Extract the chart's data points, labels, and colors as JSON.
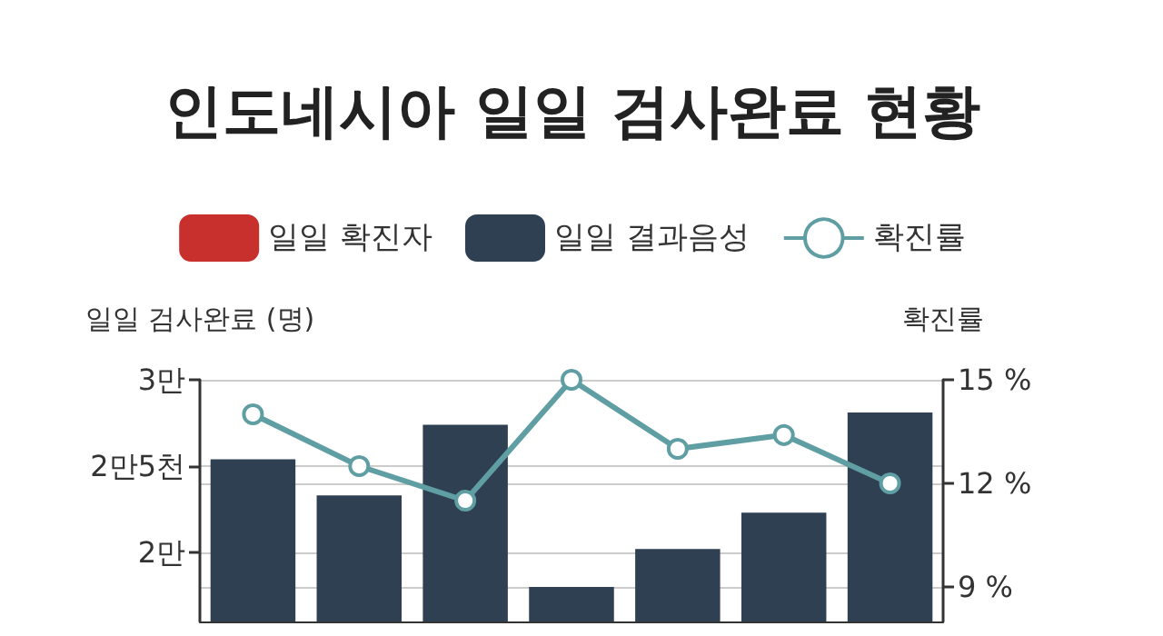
{
  "chart_data": {
    "type": "bar",
    "title": "인도네시아 일일 검사완료 현황",
    "categories": [
      null,
      null,
      null,
      null,
      null,
      null,
      null
    ],
    "series": [
      {
        "name": "일일 확진자",
        "color": "#c8302e",
        "values": [
          null,
          null,
          null,
          null,
          null,
          null,
          null
        ]
      },
      {
        "name": "일일 결과음성",
        "color": "#2e4052",
        "values": [
          2.54,
          2.33,
          2.74,
          1.8,
          2.02,
          2.23,
          2.81
        ]
      },
      {
        "name": "확진률",
        "type": "line",
        "axis": "y2",
        "color": "#5f9ea3",
        "values": [
          14.0,
          12.5,
          11.5,
          15.0,
          13.0,
          13.4,
          12.0
        ]
      }
    ],
    "ylabel": "일일 검사완료 (명)",
    "y2label": "확진률",
    "ylim": [
      1.6,
      3
    ],
    "yticks": [
      {
        "value": 2,
        "label": "2만"
      },
      {
        "value": 2.5,
        "label": "2만5천"
      },
      {
        "value": 3,
        "label": "3만"
      }
    ],
    "y2lim": [
      8,
      15
    ],
    "y2ticks": [
      {
        "value": 9,
        "label": "9 %"
      },
      {
        "value": 12,
        "label": "12 %"
      },
      {
        "value": 15,
        "label": "15 %"
      }
    ],
    "grid": true,
    "legend": "top",
    "marker": "circle",
    "line_style": "solid"
  }
}
